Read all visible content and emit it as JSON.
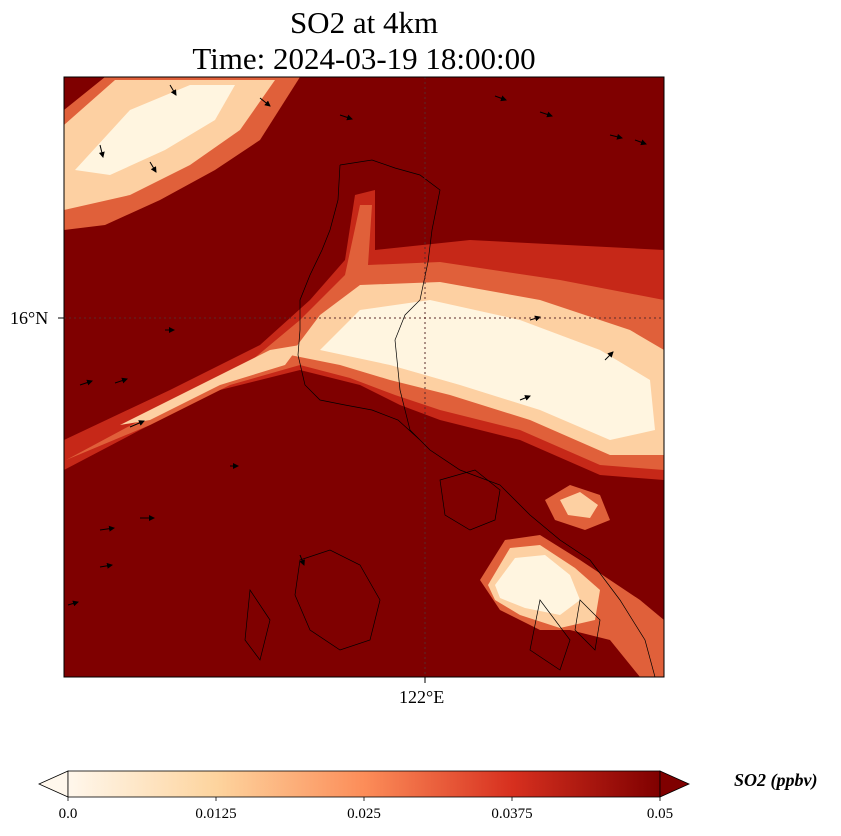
{
  "title": {
    "line1": "SO2 at 4km",
    "line2": "Time: 2024-03-19 18:00:00"
  },
  "axes": {
    "lat_tick": "16°N",
    "lon_tick": "122°E"
  },
  "colorbar": {
    "label": "SO2 (ppbv)",
    "ticks": [
      "0.0",
      "0.0125",
      "0.025",
      "0.0375",
      "0.05"
    ],
    "range": [
      0.0,
      0.05
    ],
    "extend": "both",
    "colormap": "OrRd_r",
    "colors": [
      "#fff7ec",
      "#fdd49e",
      "#fc8d59",
      "#d7301f",
      "#7f0000"
    ]
  },
  "map": {
    "background_color": "#7f0000",
    "plume_colors": {
      "light": "#fff5e0",
      "pale": "#fdd0a2",
      "mid": "#f4a582",
      "orange": "#e0603a",
      "red": "#c62818"
    },
    "coastline_color": "#000000",
    "gridline_style": "dotted",
    "wind_vectors": "shown"
  }
}
